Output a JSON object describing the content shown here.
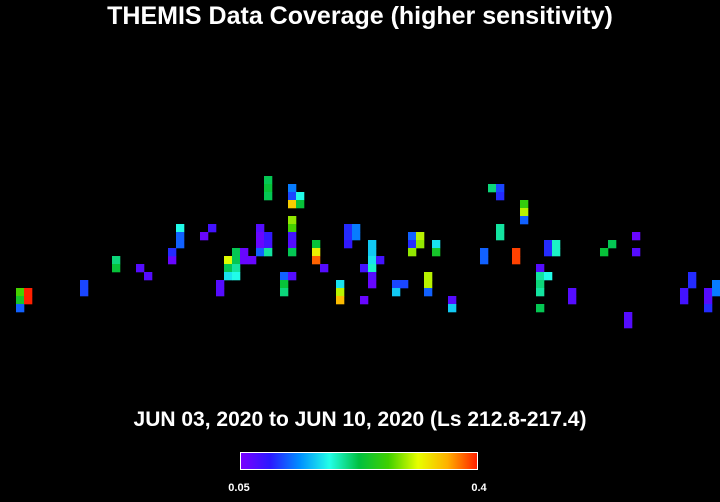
{
  "chart_data": {
    "type": "heatmap",
    "title": "THEMIS Data Coverage (higher sensitivity)",
    "subtitle": "JUN 03, 2020 to JUN 10, 2020 (Ls 212.8-217.4)",
    "colorbar": {
      "min_label": "0.05",
      "max_label": "0.4",
      "min": 0.05,
      "max": 0.4,
      "colormap": [
        "#7a00ff",
        "#2a1aff",
        "#0090ff",
        "#22ffe8",
        "#00c040",
        "#40d000",
        "#e8ff00",
        "#ffb000",
        "#ff2000"
      ]
    },
    "grid_columns": 90,
    "grid_rows": 62,
    "cells": [
      [
        2,
        36,
        0.27
      ],
      [
        2,
        37,
        0.24
      ],
      [
        2,
        38,
        0.12
      ],
      [
        3,
        36,
        0.4
      ],
      [
        3,
        37,
        0.4
      ],
      [
        10,
        35,
        0.11
      ],
      [
        10,
        36,
        0.11
      ],
      [
        14,
        32,
        0.21
      ],
      [
        14,
        33,
        0.23
      ],
      [
        17,
        33,
        0.07
      ],
      [
        18,
        34,
        0.07
      ],
      [
        21,
        32,
        0.06
      ],
      [
        21,
        31,
        0.1
      ],
      [
        22,
        28,
        0.18
      ],
      [
        22,
        29,
        0.12
      ],
      [
        22,
        30,
        0.12
      ],
      [
        25,
        29,
        0.06
      ],
      [
        26,
        28,
        0.08
      ],
      [
        27,
        35,
        0.07
      ],
      [
        27,
        36,
        0.07
      ],
      [
        28,
        32,
        0.31
      ],
      [
        28,
        33,
        0.22
      ],
      [
        28,
        34,
        0.17
      ],
      [
        29,
        31,
        0.22
      ],
      [
        29,
        32,
        0.22
      ],
      [
        29,
        33,
        0.2
      ],
      [
        29,
        34,
        0.18
      ],
      [
        30,
        31,
        0.06
      ],
      [
        30,
        32,
        0.06
      ],
      [
        31,
        32,
        0.06
      ],
      [
        32,
        28,
        0.07
      ],
      [
        32,
        29,
        0.06
      ],
      [
        32,
        30,
        0.06
      ],
      [
        32,
        31,
        0.12
      ],
      [
        33,
        22,
        0.22
      ],
      [
        33,
        23,
        0.23
      ],
      [
        33,
        24,
        0.22
      ],
      [
        33,
        29,
        0.09
      ],
      [
        33,
        30,
        0.08
      ],
      [
        33,
        31,
        0.2
      ],
      [
        35,
        34,
        0.12
      ],
      [
        35,
        35,
        0.23
      ],
      [
        35,
        36,
        0.21
      ],
      [
        36,
        23,
        0.13
      ],
      [
        36,
        24,
        0.11
      ],
      [
        36,
        25,
        0.34
      ],
      [
        36,
        27,
        0.29
      ],
      [
        36,
        28,
        0.27
      ],
      [
        36,
        29,
        0.08
      ],
      [
        36,
        30,
        0.07
      ],
      [
        36,
        31,
        0.22
      ],
      [
        36,
        34,
        0.07
      ],
      [
        37,
        24,
        0.18
      ],
      [
        37,
        25,
        0.23
      ],
      [
        39,
        30,
        0.23
      ],
      [
        39,
        31,
        0.32
      ],
      [
        39,
        32,
        0.38
      ],
      [
        40,
        33,
        0.07
      ],
      [
        42,
        35,
        0.17
      ],
      [
        42,
        36,
        0.3
      ],
      [
        42,
        37,
        0.35
      ],
      [
        43,
        28,
        0.1
      ],
      [
        43,
        29,
        0.1
      ],
      [
        43,
        30,
        0.09
      ],
      [
        44,
        28,
        0.13
      ],
      [
        44,
        29,
        0.13
      ],
      [
        45,
        33,
        0.08
      ],
      [
        45,
        37,
        0.06
      ],
      [
        46,
        30,
        0.16
      ],
      [
        46,
        31,
        0.16
      ],
      [
        46,
        32,
        0.17
      ],
      [
        46,
        33,
        0.19
      ],
      [
        46,
        34,
        0.07
      ],
      [
        46,
        35,
        0.06
      ],
      [
        47,
        32,
        0.08
      ],
      [
        49,
        35,
        0.11
      ],
      [
        49,
        36,
        0.16
      ],
      [
        50,
        35,
        0.11
      ],
      [
        51,
        29,
        0.12
      ],
      [
        51,
        30,
        0.1
      ],
      [
        51,
        31,
        0.29
      ],
      [
        52,
        29,
        0.3
      ],
      [
        52,
        30,
        0.29
      ],
      [
        53,
        34,
        0.3
      ],
      [
        53,
        35,
        0.3
      ],
      [
        53,
        36,
        0.12
      ],
      [
        54,
        30,
        0.17
      ],
      [
        54,
        31,
        0.24
      ],
      [
        56,
        37,
        0.07
      ],
      [
        56,
        38,
        0.16
      ],
      [
        60,
        31,
        0.12
      ],
      [
        60,
        32,
        0.12
      ],
      [
        61,
        23,
        0.21
      ],
      [
        62,
        23,
        0.11
      ],
      [
        62,
        24,
        0.1
      ],
      [
        62,
        28,
        0.2
      ],
      [
        62,
        29,
        0.2
      ],
      [
        64,
        31,
        0.39
      ],
      [
        64,
        32,
        0.39
      ],
      [
        65,
        25,
        0.26
      ],
      [
        65,
        26,
        0.3
      ],
      [
        65,
        27,
        0.12
      ],
      [
        67,
        33,
        0.07
      ],
      [
        67,
        34,
        0.2
      ],
      [
        67,
        35,
        0.21
      ],
      [
        67,
        36,
        0.2
      ],
      [
        67,
        38,
        0.22
      ],
      [
        68,
        30,
        0.1
      ],
      [
        68,
        31,
        0.1
      ],
      [
        68,
        34,
        0.18
      ],
      [
        69,
        30,
        0.19
      ],
      [
        69,
        31,
        0.19
      ],
      [
        71,
        36,
        0.07
      ],
      [
        71,
        37,
        0.07
      ],
      [
        75,
        31,
        0.23
      ],
      [
        76,
        30,
        0.22
      ],
      [
        78,
        39,
        0.07
      ],
      [
        78,
        40,
        0.07
      ],
      [
        79,
        29,
        0.06
      ],
      [
        79,
        31,
        0.07
      ],
      [
        85,
        36,
        0.08
      ],
      [
        85,
        37,
        0.08
      ],
      [
        86,
        34,
        0.1
      ],
      [
        86,
        35,
        0.1
      ],
      [
        88,
        36,
        0.07
      ],
      [
        88,
        37,
        0.07
      ],
      [
        88,
        38,
        0.1
      ],
      [
        89,
        35,
        0.13
      ],
      [
        89,
        36,
        0.13
      ]
    ]
  }
}
